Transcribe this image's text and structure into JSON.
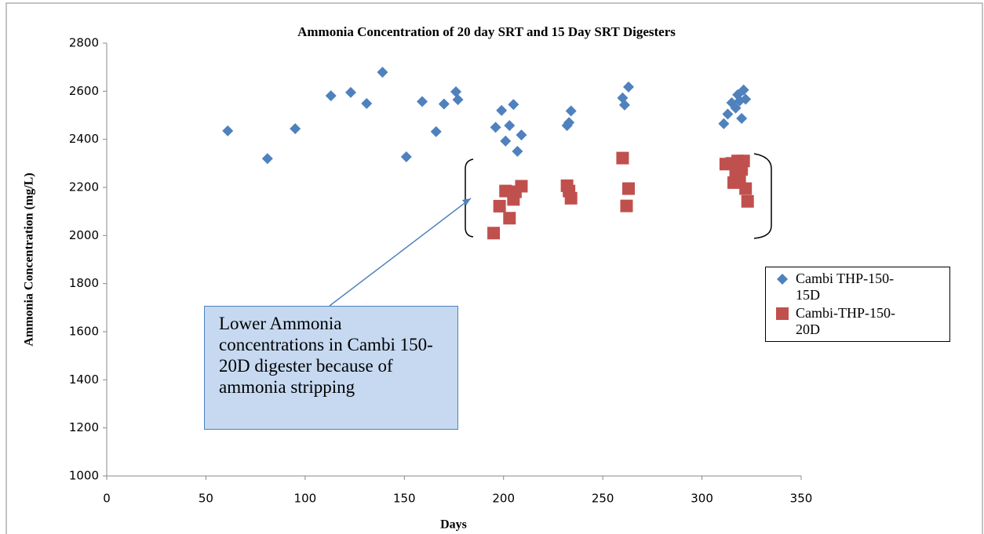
{
  "chart_data": {
    "type": "scatter",
    "title": "Ammonia Concentration of  20 day SRT and 15 Day SRT Digesters",
    "x_label": "Days",
    "y_label": "Ammonia Concentration (mg/L)",
    "xlim": [
      0,
      350
    ],
    "xticks": [
      0,
      50,
      100,
      150,
      200,
      250,
      300,
      350
    ],
    "ylim": [
      1000,
      2800
    ],
    "yticks": [
      1000,
      1200,
      1400,
      1600,
      1800,
      2000,
      2200,
      2400,
      2600,
      2800
    ],
    "grid": false,
    "legend": "right",
    "annotation": "Lower Ammonia concentrations in Cambi 150-20D digester because of ammonia stripping",
    "series": [
      {
        "name": "Cambi THP-150-15D",
        "color": "#4f81bd",
        "marker": "diamond",
        "x": [
          61,
          81,
          95,
          113,
          123,
          131,
          139,
          151,
          159,
          166,
          170,
          176,
          177,
          196,
          199,
          201,
          203,
          205,
          207,
          209,
          232,
          233,
          234,
          260,
          261,
          263,
          311,
          313,
          315,
          317,
          318,
          319,
          320,
          321,
          322
        ],
        "values": [
          2435,
          2320,
          2444,
          2581,
          2595,
          2549,
          2679,
          2327,
          2557,
          2432,
          2547,
          2598,
          2565,
          2450,
          2520,
          2393,
          2457,
          2545,
          2350,
          2418,
          2457,
          2470,
          2518,
          2572,
          2543,
          2618,
          2465,
          2505,
          2552,
          2530,
          2585,
          2560,
          2487,
          2605,
          2567
        ]
      },
      {
        "name": "Cambi-THP-150-20D",
        "color": "#c0504d",
        "marker": "square",
        "x": [
          195,
          198,
          201,
          203,
          205,
          206,
          209,
          232,
          233,
          234,
          260,
          262,
          263,
          312,
          315,
          316,
          317,
          318,
          319,
          320,
          321,
          322,
          323
        ],
        "values": [
          2010,
          2122,
          2185,
          2072,
          2150,
          2182,
          2205,
          2207,
          2185,
          2155,
          2322,
          2123,
          2195,
          2297,
          2300,
          2220,
          2260,
          2310,
          2240,
          2275,
          2310,
          2195,
          2142
        ]
      }
    ]
  }
}
